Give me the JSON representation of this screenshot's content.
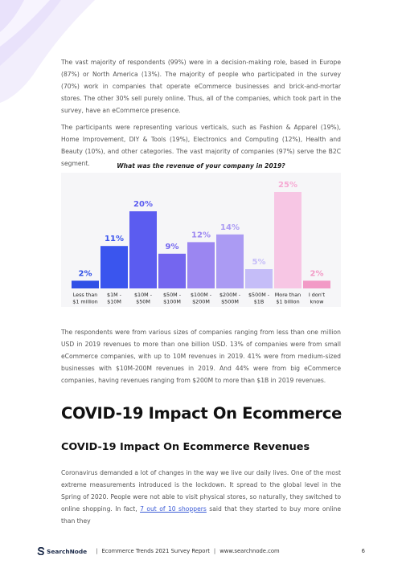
{
  "body": {
    "para1": "The vast majority of respondents (99%) were in a decision-making role, based in Europe (87%) or North America (13%). The majority of people who participated in the survey (70%) work in companies that operate eCommerce businesses and brick-and-mortar stores. The other 30% sell purely online. Thus, all of the companies, which took part in the survey, have an eCommerce presence.",
    "para2": "The participants were representing various verticals, such as Fashion & Apparel (19%), Home Improvement, DIY & Tools (19%), Electronics and Computing (12%), Health and Beauty (10%), and other categories. The vast majority of companies (97%) serve the B2C segment.",
    "para3": "The respondents were from various sizes of companies ranging from less than one million USD in 2019 revenues to more than one billion USD. 13% of companies were from small eCommerce companies, with up to 10M revenues in 2019. 41% were from medium-sized businesses with $10M-200M revenues in 2019. And 44% were from big eCommerce companies, having revenues ranging from $200M to more than $1B in 2019 revenues.",
    "heading1": "COVID-19 Impact On Ecommerce",
    "heading2": "COVID-19 Impact On Ecommerce Revenues",
    "para4_before": "Coronavirus demanded a lot of changes in the way we live our daily lives. One of the most extreme measurements introduced is the lockdown. It spread to the global level in the Spring of 2020. People were not able to visit physical stores, so naturally, they switched to online shopping. In fact, ",
    "para4_link": "7 out of 10 shoppers",
    "para4_after": " said that they started to buy more online than they"
  },
  "chart_data": {
    "type": "bar",
    "title": "What was the revenue of your company in 2019?",
    "categories": [
      [
        "Less than",
        "$1 million"
      ],
      [
        "$1M -",
        "$10M"
      ],
      [
        "$10M -",
        "$50M"
      ],
      [
        "$50M -",
        "$100M"
      ],
      [
        "$100M -",
        "$200M"
      ],
      [
        "$200M -",
        "$500M"
      ],
      [
        "$500M -",
        "$1B"
      ],
      [
        "More than",
        "$1 billion"
      ],
      [
        "I don't",
        "know"
      ]
    ],
    "values": [
      2,
      11,
      20,
      9,
      12,
      14,
      5,
      25,
      2
    ],
    "value_labels": [
      "2%",
      "11%",
      "20%",
      "9%",
      "12%",
      "14%",
      "5%",
      "25%",
      "2%"
    ],
    "bar_colors": [
      "#2f4fe6",
      "#3a55ee",
      "#5b5cf0",
      "#7466ef",
      "#9b86f1",
      "#ab9bf3",
      "#c5bdf8",
      "#f7c6e4",
      "#f29ac6"
    ],
    "label_colors": [
      "#2f4fe6",
      "#3a55ee",
      "#5b5cf0",
      "#7466ef",
      "#9b86f1",
      "#ab9bf3",
      "#c5bdf8",
      "#f6a9d3",
      "#f29ac6"
    ],
    "ylim": [
      0,
      25
    ],
    "grid": false,
    "background": "#f6f6f8"
  },
  "footer": {
    "brand": "SearchNode",
    "separator": "|",
    "report": "Ecommerce Trends 2021 Survey Report",
    "site": "www.searchnode.com",
    "page": "6"
  },
  "colors": {
    "accent": "#3b5bd6",
    "deco": "#ece6fb"
  }
}
